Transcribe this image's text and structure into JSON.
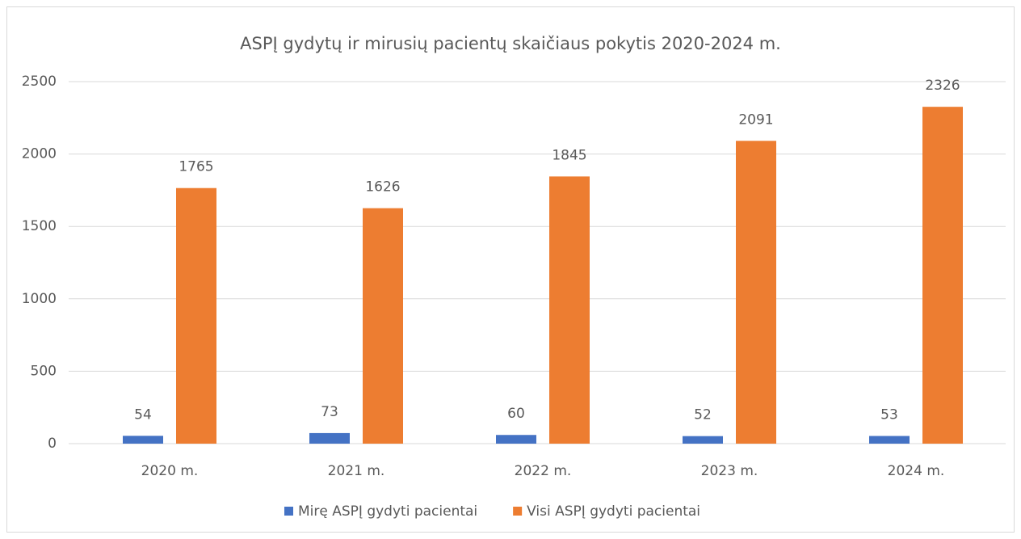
{
  "chart_data": {
    "type": "bar",
    "title": "ASPĮ gydytų ir mirusių pacientų skaičiaus pokytis 2020-2024 m.",
    "categories": [
      "2020 m.",
      "2021 m.",
      "2022 m.",
      "2023 m.",
      "2024 m."
    ],
    "series": [
      {
        "name": "Mirę ASPĮ gydyti pacientai",
        "color": "#4472c4",
        "values": [
          54,
          73,
          60,
          52,
          53
        ]
      },
      {
        "name": "Visi ASPĮ gydyti pacientai",
        "color": "#ed7d31",
        "values": [
          1765,
          1626,
          1845,
          2091,
          2326
        ]
      }
    ],
    "ylim": [
      0,
      2500
    ],
    "yticks": [
      0,
      500,
      1000,
      1500,
      2000,
      2500
    ],
    "grid": true,
    "legend": "bottom"
  }
}
